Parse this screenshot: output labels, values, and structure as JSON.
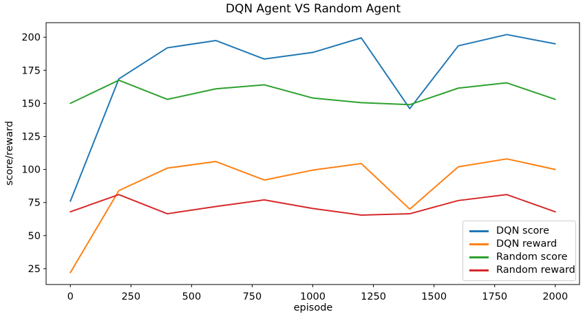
{
  "chart_data": {
    "type": "line",
    "title": "DQN Agent VS Random Agent",
    "xlabel": "episode",
    "ylabel": "score/reward",
    "x": [
      0,
      200,
      400,
      600,
      800,
      1000,
      1200,
      1400,
      1600,
      1800,
      2000
    ],
    "series": [
      {
        "name": "DQN score",
        "color": "#1f77b4",
        "values": [
          76,
          168.5,
          192,
          197.5,
          183.5,
          188.5,
          199.5,
          146,
          193.5,
          202,
          195
        ]
      },
      {
        "name": "DQN reward",
        "color": "#ff7f0e",
        "values": [
          22,
          84,
          101,
          106,
          92,
          99.5,
          104.5,
          70,
          102,
          108,
          100
        ]
      },
      {
        "name": "Random score",
        "color": "#2ca02c",
        "values": [
          150,
          167.5,
          153,
          161,
          164,
          154,
          150.5,
          149,
          161.5,
          165.5,
          153
        ]
      },
      {
        "name": "Random reward",
        "color": "#d62728",
        "values": [
          68,
          81,
          66.5,
          72,
          77,
          70.5,
          65.5,
          66.5,
          76.5,
          81,
          68
        ]
      }
    ],
    "x_ticks": [
      0,
      250,
      500,
      750,
      1000,
      1250,
      1500,
      1750,
      2000
    ],
    "y_ticks": [
      25,
      50,
      75,
      100,
      125,
      150,
      175,
      200
    ],
    "xlim": [
      -100,
      2100
    ],
    "ylim": [
      13,
      211
    ],
    "legend_position": "lower right",
    "grid": false,
    "frame_color": "#000000",
    "legend_border_color": "#cccccc",
    "background_color": "#ffffff"
  }
}
